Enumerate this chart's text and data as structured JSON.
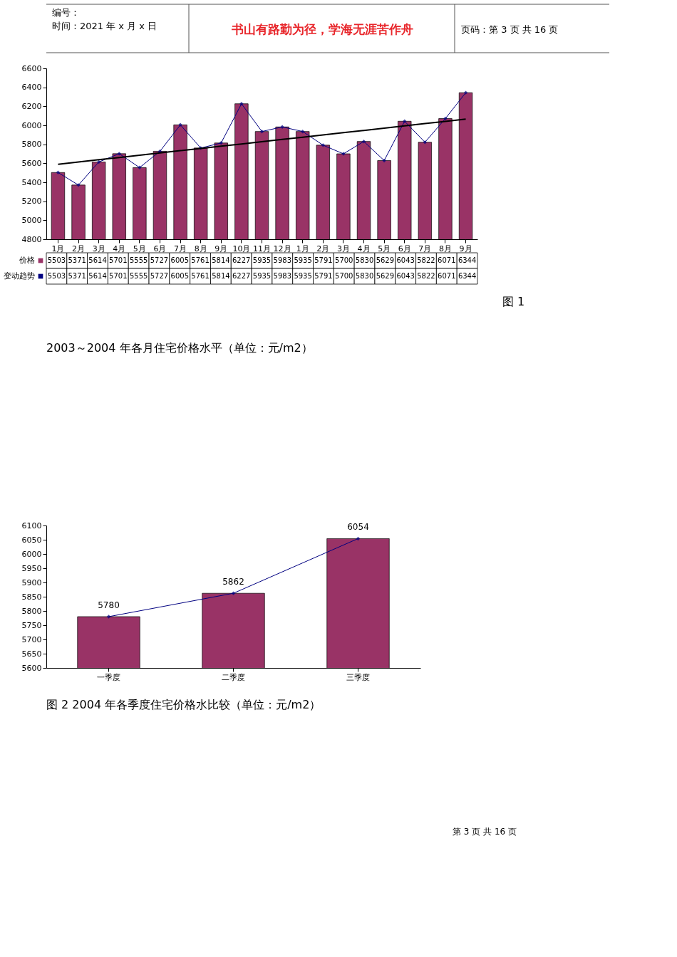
{
  "chart_data": [
    {
      "type": "bar",
      "categories": [
        "1月",
        "2月",
        "3月",
        "4月",
        "5月",
        "6月",
        "7月",
        "8月",
        "9月",
        "10月",
        "11月",
        "12月",
        "1月",
        "2月",
        "3月",
        "4月",
        "5月",
        "6月",
        "7月",
        "8月",
        "9月"
      ],
      "series": [
        {
          "name": "价格",
          "color": "#993366",
          "values": [
            5503,
            5371,
            5614,
            5701,
            5555,
            5727,
            6005,
            5761,
            5814,
            6227,
            5935,
            5983,
            5935,
            5791,
            5700,
            5830,
            5629,
            6043,
            5822,
            6071,
            6344
          ],
          "value_labels": [
            "5503",
            "5371",
            "5614",
            "5701",
            "5555",
            "5727",
            "6005",
            "5761",
            "5814",
            "6227",
            "5935",
            "5983",
            "5935",
            "5791",
            "5700",
            "5830",
            "5629",
            "6043",
            "5822",
            "6071",
            "6344"
          ]
        },
        {
          "name": "变动趋势",
          "type": "line",
          "color": "#000080",
          "values": [
            5503,
            5371,
            5614,
            5701,
            5555,
            5727,
            6005,
            5761,
            5814,
            6227,
            5935,
            5983,
            5935,
            5791,
            5700,
            5830,
            5629,
            6043,
            5822,
            6071,
            6344
          ],
          "value_labels": [
            "5503",
            "5371",
            "5614",
            "5701",
            "5555",
            "5727",
            "6005",
            "5761",
            "5814",
            "6227",
            "5935",
            "5983",
            "5935",
            "5791",
            "5700",
            "5830",
            "5629",
            "6043",
            "5822",
            "6071",
            "6344"
          ]
        },
        {
          "type": "line",
          "color": "#000000",
          "marker": "none",
          "values": [
            5590,
            5614,
            5638,
            5661,
            5685,
            5709,
            5733,
            5756,
            5780,
            5804,
            5828,
            5851,
            5875,
            5899,
            5923,
            5946,
            5970,
            5994,
            6018,
            6041,
            6065
          ]
        }
      ],
      "ylim": [
        4800,
        6600
      ],
      "yticks": [
        4800,
        5000,
        5200,
        5400,
        5600,
        5800,
        6000,
        6200,
        6400,
        6600
      ],
      "marker": "diamond",
      "legend": "bottom",
      "annotations": [
        "编号：",
        "时间：2021 年 x 月 x 日",
        "书山有路勤为径，学海无涯苦作舟",
        "页码：第 3 页  共 16 页",
        "图  1",
        "2003～2004 年各月住宅价格水平（单位：元/m2）"
      ]
    },
    {
      "type": "bar",
      "categories": [
        "一季度",
        "二季度",
        "三季度"
      ],
      "series": [
        {
          "color": "#993366",
          "values": [
            5780,
            5862,
            6054
          ],
          "value_labels": [
            "5780",
            "5862",
            "6054"
          ]
        },
        {
          "type": "line",
          "color": "#000080",
          "values": [
            5780,
            5862,
            6054
          ]
        }
      ],
      "ylim": [
        5600,
        6100
      ],
      "yticks": [
        5600,
        5650,
        5700,
        5750,
        5800,
        5850,
        5900,
        5950,
        6000,
        6050,
        6100
      ],
      "marker": "diamond",
      "annotations": [
        "图 2 2004 年各季度住宅价格水比较（单位：元/m2）",
        "第  3  页  共  16  页"
      ]
    }
  ]
}
